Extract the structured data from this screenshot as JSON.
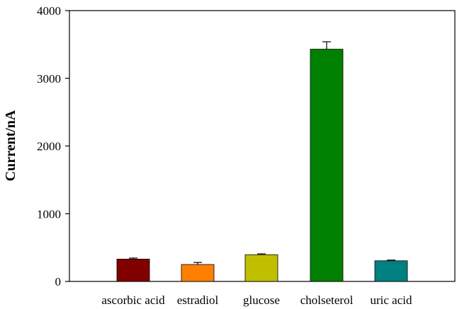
{
  "chart_data": {
    "type": "bar",
    "title": "",
    "xlabel": "",
    "ylabel": "Current/nA",
    "ylim": [
      0,
      4000
    ],
    "yticks": [
      0,
      1000,
      2000,
      3000,
      4000
    ],
    "grid": false,
    "categories": [
      "ascorbic acid",
      "estradiol",
      "glucose",
      "cholseterol",
      "uric acid"
    ],
    "values": [
      330,
      250,
      395,
      3430,
      305
    ],
    "errors": [
      15,
      30,
      12,
      110,
      10
    ],
    "colors": [
      "#800000",
      "#ff8000",
      "#bfbf00",
      "#008000",
      "#008080"
    ]
  }
}
